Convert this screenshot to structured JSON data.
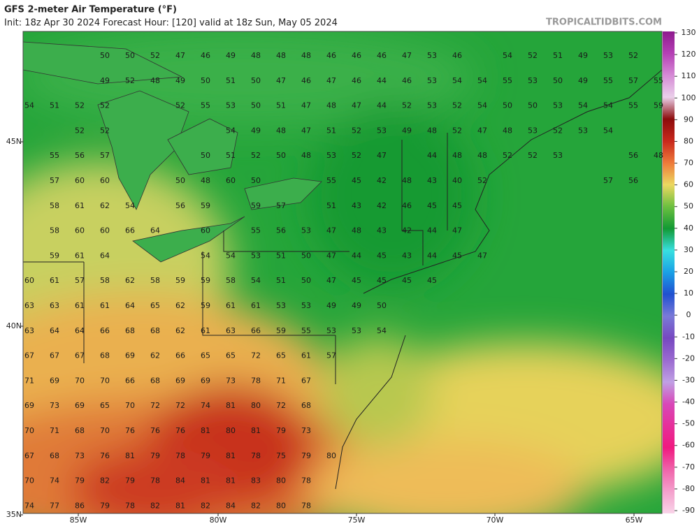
{
  "header": {
    "title": "GFS 2-meter Air Temperature (°F)",
    "subtitle": "Init: 18z Apr 30 2024   Forecast Hour: [120]   valid at 18z Sun, May 05 2024",
    "site": "TROPICALTIDBITS.COM"
  },
  "map": {
    "lat_labels": [
      "45N",
      "40N",
      "35N"
    ],
    "lon_labels": [
      "85W",
      "80W",
      "75W",
      "70W",
      "65W"
    ],
    "rows": [
      [
        null,
        null,
        null,
        50,
        50,
        52,
        47,
        46,
        49,
        48,
        48,
        48,
        46,
        46,
        46,
        47,
        53,
        46,
        null,
        54,
        52,
        51,
        49,
        53,
        52
      ],
      [
        null,
        null,
        null,
        49,
        52,
        48,
        49,
        50,
        51,
        50,
        47,
        46,
        47,
        46,
        44,
        46,
        53,
        54,
        54,
        55,
        53,
        50,
        49,
        55,
        57,
        55
      ],
      [
        54,
        51,
        52,
        52,
        null,
        null,
        52,
        55,
        53,
        50,
        51,
        47,
        48,
        47,
        44,
        52,
        53,
        52,
        54,
        50,
        50,
        53,
        54,
        54,
        55,
        59
      ],
      [
        null,
        null,
        52,
        52,
        null,
        null,
        null,
        null,
        54,
        49,
        48,
        47,
        51,
        52,
        53,
        49,
        48,
        52,
        47,
        48,
        53,
        52,
        53,
        54
      ],
      [
        null,
        55,
        56,
        57,
        null,
        null,
        null,
        50,
        51,
        52,
        50,
        48,
        53,
        52,
        47,
        null,
        44,
        48,
        48,
        52,
        52,
        53,
        null,
        null,
        56,
        48
      ],
      [
        null,
        57,
        60,
        60,
        null,
        null,
        50,
        48,
        60,
        50,
        null,
        null,
        55,
        45,
        42,
        48,
        43,
        40,
        52,
        null,
        null,
        null,
        null,
        57,
        56
      ],
      [
        null,
        58,
        61,
        62,
        54,
        null,
        56,
        59,
        null,
        59,
        57,
        null,
        51,
        43,
        42,
        46,
        45,
        45
      ],
      [
        null,
        58,
        60,
        60,
        66,
        64,
        null,
        60,
        null,
        55,
        56,
        53,
        47,
        48,
        43,
        42,
        44,
        47
      ],
      [
        null,
        59,
        61,
        64,
        null,
        null,
        null,
        54,
        54,
        53,
        51,
        50,
        47,
        44,
        45,
        43,
        44,
        45,
        47
      ],
      [
        60,
        61,
        57,
        58,
        62,
        58,
        59,
        59,
        58,
        54,
        51,
        50,
        47,
        45,
        45,
        45,
        45
      ],
      [
        63,
        63,
        61,
        61,
        64,
        65,
        62,
        59,
        61,
        61,
        53,
        53,
        49,
        49,
        50
      ],
      [
        63,
        64,
        64,
        66,
        68,
        68,
        62,
        61,
        63,
        66,
        59,
        55,
        53,
        53,
        54
      ],
      [
        67,
        67,
        67,
        68,
        69,
        62,
        66,
        65,
        65,
        72,
        65,
        61,
        57
      ],
      [
        71,
        69,
        70,
        70,
        66,
        68,
        69,
        69,
        73,
        78,
        71,
        67
      ],
      [
        69,
        73,
        69,
        65,
        70,
        72,
        72,
        74,
        81,
        80,
        72,
        68
      ],
      [
        70,
        71,
        68,
        70,
        76,
        76,
        76,
        81,
        80,
        81,
        79,
        73
      ],
      [
        67,
        68,
        73,
        76,
        81,
        79,
        78,
        79,
        81,
        78,
        75,
        79,
        80
      ],
      [
        70,
        74,
        79,
        82,
        79,
        78,
        84,
        81,
        81,
        83,
        80,
        78
      ],
      [
        74,
        77,
        86,
        79,
        78,
        82,
        81,
        82,
        84,
        82,
        80,
        78
      ]
    ]
  },
  "colorbar": {
    "ticks": [
      130,
      120,
      110,
      100,
      90,
      80,
      70,
      60,
      50,
      40,
      30,
      20,
      10,
      0,
      -10,
      -20,
      -30,
      -40,
      -50,
      -60,
      -70,
      -80,
      -90
    ],
    "colors": [
      "#8e1a8e",
      "#b540b5",
      "#d58ad5",
      "#ead0ea",
      "#8c0c0c",
      "#c8281c",
      "#ee7a3a",
      "#ecd860",
      "#6cc040",
      "#129a34",
      "#38e0e0",
      "#1aa0e6",
      "#2050d0",
      "#7a7ad8",
      "#7648c0",
      "#9a6ad0",
      "#c0a0e4",
      "#d848b8",
      "#e6309a",
      "#f01a80",
      "#f064aa",
      "#f4a0cc",
      "#f8d4e8"
    ]
  }
}
